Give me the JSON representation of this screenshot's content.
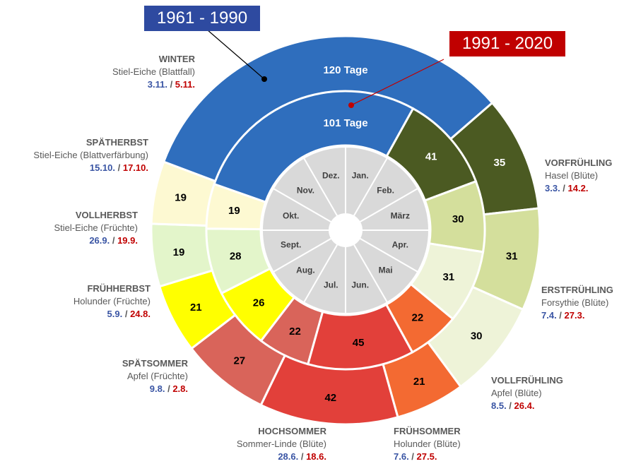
{
  "chart_data": {
    "type": "polar-ring",
    "title": "",
    "legend": {
      "old": "1961 - 1990",
      "new": "1991 - 2020"
    },
    "colors": {
      "old": "#3a55a4",
      "new": "#c00000"
    },
    "months": [
      "Jan.",
      "Feb.",
      "März",
      "Apr.",
      "Mai",
      "Jun.",
      "Jul.",
      "Aug.",
      "Sept.",
      "Okt.",
      "Nov.",
      "Dez."
    ],
    "units": "Tage",
    "series": [
      {
        "name": "1961 - 1990",
        "ring": "outer",
        "values": [
          35,
          31,
          30,
          21,
          42,
          27,
          21,
          19,
          19,
          120
        ]
      },
      {
        "name": "1991 - 2020",
        "ring": "inner",
        "values": [
          41,
          30,
          31,
          22,
          45,
          22,
          26,
          28,
          19,
          101
        ]
      }
    ],
    "phases": [
      {
        "name": "VORFRÜHLING",
        "plant": "Hasel (Blüte)",
        "date_old": "3.3.",
        "date_new": "14.2.",
        "outer_days": 35,
        "inner_days": 41,
        "color": "#4b5a22",
        "text_color": "#ffffff"
      },
      {
        "name": "ERSTFRÜHLING",
        "plant": "Forsythie (Blüte)",
        "date_old": "7.4.",
        "date_new": "27.3.",
        "outer_days": 31,
        "inner_days": 30,
        "color": "#d4df9c",
        "text_color": "#000000"
      },
      {
        "name": "VOLLFRÜHLING",
        "plant": "Apfel (Blüte)",
        "date_old": "8.5.",
        "date_new": "26.4.",
        "outer_days": 30,
        "inner_days": 31,
        "color": "#eef3d8",
        "text_color": "#000000"
      },
      {
        "name": "FRÜHSOMMER",
        "plant": "Holunder (Blüte)",
        "date_old": "7.6.",
        "date_new": "27.5.",
        "outer_days": 21,
        "inner_days": 22,
        "color": "#f36a32",
        "text_color": "#000000"
      },
      {
        "name": "HOCHSOMMER",
        "plant": "Sommer-Linde (Blüte)",
        "date_old": "28.6.",
        "date_new": "18.6.",
        "outer_days": 42,
        "inner_days": 45,
        "color": "#e2403a",
        "text_color": "#000000"
      },
      {
        "name": "SPÄTSOMMER",
        "plant": "Apfel (Früchte)",
        "date_old": "9.8.",
        "date_new": "2.8.",
        "outer_days": 27,
        "inner_days": 22,
        "color": "#d9645a",
        "text_color": "#000000"
      },
      {
        "name": "FRÜHHERBST",
        "plant": "Holunder (Früchte)",
        "date_old": "5.9.",
        "date_new": "24.8.",
        "outer_days": 21,
        "inner_days": 26,
        "color": "#ffff00",
        "text_color": "#000000"
      },
      {
        "name": "VOLLHERBST",
        "plant": "Stiel-Eiche (Früchte)",
        "date_old": "26.9.",
        "date_new": "19.9.",
        "outer_days": 19,
        "inner_days": 28,
        "color": "#e3f5ca",
        "text_color": "#000000"
      },
      {
        "name": "SPÄTHERBST",
        "plant": "Stiel-Eiche (Blattverfärbung)",
        "date_old": "15.10.",
        "date_new": "17.10.",
        "outer_days": 19,
        "inner_days": 19,
        "color": "#fdf9d2",
        "text_color": "#000000"
      },
      {
        "name": "WINTER",
        "plant": "Stiel-Eiche (Blattfall)",
        "date_old": "3.11.",
        "date_new": "5.11.",
        "outer_days": 120,
        "inner_days": 101,
        "color": "#2f6ebd",
        "text_color": "#ffffff",
        "outer_label": "120 Tage",
        "inner_label": "101 Tage"
      }
    ]
  }
}
